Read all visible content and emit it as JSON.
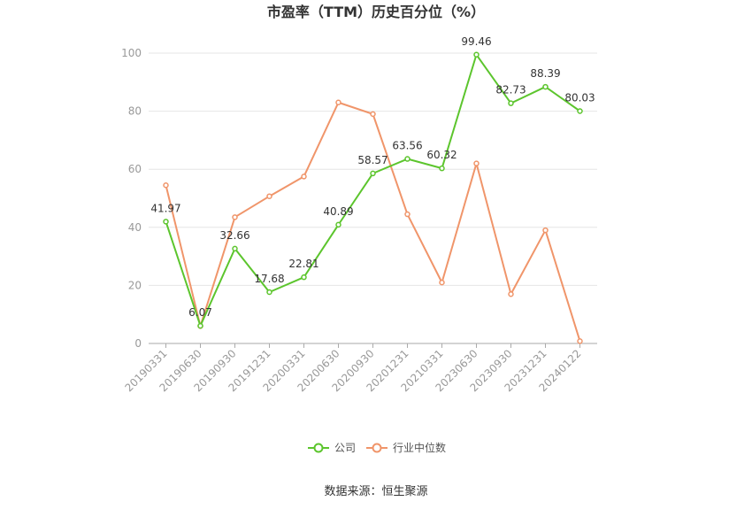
{
  "chart_data": {
    "type": "line",
    "title": "市盈率（TTM）历史百分位（%）",
    "categories": [
      "20190331",
      "20190630",
      "20190930",
      "20191231",
      "20200331",
      "20200630",
      "20200930",
      "20201231",
      "20210331",
      "20230630",
      "20230930",
      "20231231",
      "20240122"
    ],
    "series": [
      {
        "name": "公司",
        "color": "#5cc52d",
        "values": [
          41.97,
          6.07,
          32.66,
          17.68,
          22.81,
          40.89,
          58.57,
          63.56,
          60.32,
          99.46,
          82.73,
          88.39,
          80.03
        ],
        "labels": [
          "41.97",
          "6.07",
          "32.66",
          "17.68",
          "22.81",
          "40.89",
          "58.57",
          "63.56",
          "60.32",
          "99.46",
          "82.73",
          "88.39",
          "80.03"
        ]
      },
      {
        "name": "行业中位数",
        "color": "#f0956a",
        "values": [
          54.5,
          6.0,
          43.5,
          50.7,
          57.5,
          83.0,
          79.0,
          44.5,
          21.0,
          62.0,
          17.0,
          39.0,
          0.8
        ]
      }
    ],
    "yticks": [
      "0",
      "20",
      "40",
      "60",
      "80",
      "100"
    ],
    "ylim": [
      0,
      100
    ],
    "grid": true,
    "legend_position": "bottom-center"
  },
  "source": "数据来源：恒生聚源"
}
